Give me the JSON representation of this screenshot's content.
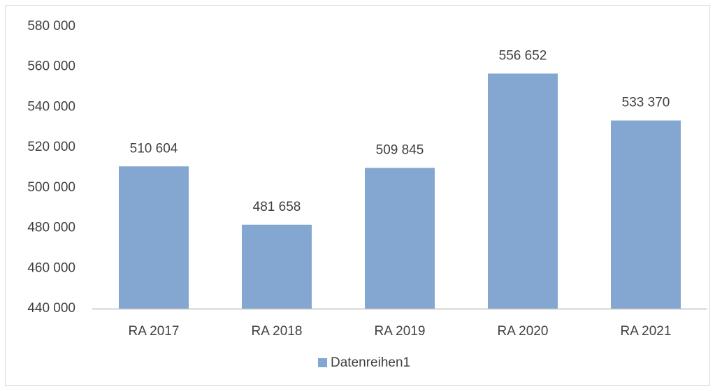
{
  "chart_data": {
    "type": "bar",
    "categories": [
      "RA 2017",
      "RA 2018",
      "RA 2019",
      "RA 2020",
      "RA 2021"
    ],
    "series": [
      {
        "name": "Datenreihen1",
        "color": "#84a7d1",
        "values": [
          510604,
          481658,
          509845,
          556652,
          533370
        ],
        "value_labels": [
          "510 604",
          "481 658",
          "509 845",
          "556 652",
          "533 370"
        ]
      }
    ],
    "ylim": [
      440000,
      580000
    ],
    "yticks": [
      {
        "value": 440000,
        "label": "440 000"
      },
      {
        "value": 460000,
        "label": "460 000"
      },
      {
        "value": 480000,
        "label": "480 000"
      },
      {
        "value": 500000,
        "label": "500 000"
      },
      {
        "value": 520000,
        "label": "520 000"
      },
      {
        "value": 540000,
        "label": "540 000"
      },
      {
        "value": 560000,
        "label": "560 000"
      },
      {
        "value": 580000,
        "label": "580 000"
      }
    ],
    "grid": false,
    "legend": "bottom"
  }
}
